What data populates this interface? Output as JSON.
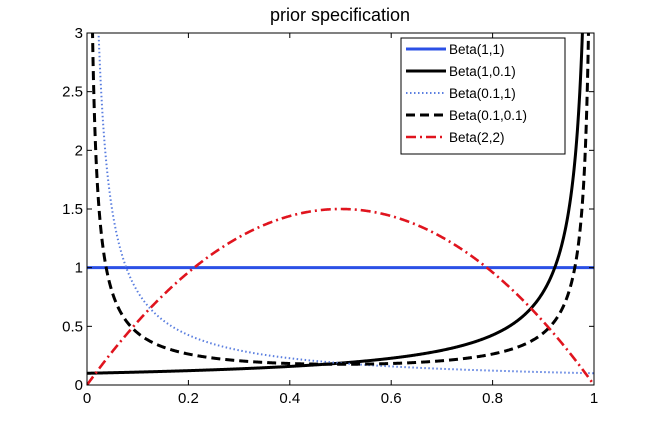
{
  "chart_data": {
    "type": "line",
    "title": "prior specification",
    "xlabel": "",
    "ylabel": "",
    "xlim": [
      0,
      1
    ],
    "ylim": [
      0,
      3
    ],
    "xticks": [
      0,
      0.2,
      0.4,
      0.6,
      0.8,
      1
    ],
    "xtick_labels": [
      "0",
      "0.2",
      "0.4",
      "0.6",
      "0.8",
      "1"
    ],
    "yticks": [
      0,
      0.5,
      1,
      1.5,
      2,
      2.5,
      3
    ],
    "ytick_labels": [
      "0",
      "0.5",
      "1",
      "1.5",
      "2",
      "2.5",
      "3"
    ],
    "grid": false,
    "legend_position": "top-right",
    "series": [
      {
        "name": "Beta(1,1)",
        "alpha": 1,
        "beta": 1,
        "color": "#2b50e6",
        "style": "solid"
      },
      {
        "name": "Beta(1,0.1)",
        "alpha": 1,
        "beta": 0.1,
        "color": "#000000",
        "style": "solid"
      },
      {
        "name": "Beta(0.1,1)",
        "alpha": 0.1,
        "beta": 1,
        "color": "#5b7fe0",
        "style": "dotted"
      },
      {
        "name": "Beta(0.1,0.1)",
        "alpha": 0.1,
        "beta": 0.1,
        "color": "#000000",
        "style": "dashed"
      },
      {
        "name": "Beta(2,2)",
        "alpha": 2,
        "beta": 2,
        "color": "#e0141e",
        "style": "dashdot"
      }
    ]
  }
}
